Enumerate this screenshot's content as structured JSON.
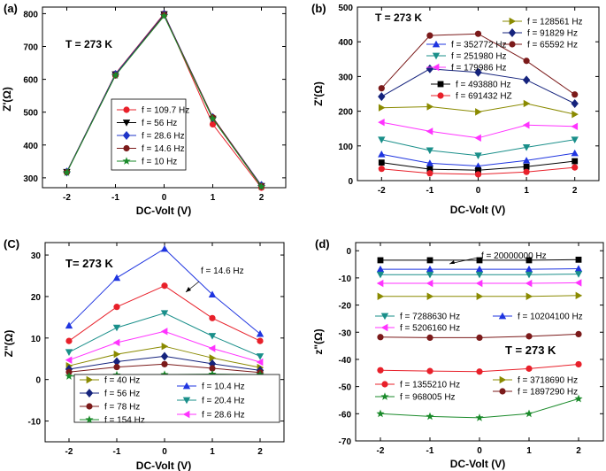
{
  "chart_data": [
    {
      "id": "a",
      "type": "line",
      "panel_label": "(a)",
      "annotation": "T = 273 K",
      "xlabel": "DC-Volt (V)",
      "ylabel": "Z'(Ω)",
      "x": [
        -2,
        -1,
        0,
        1,
        2
      ],
      "xticks": [
        "-2",
        "-1",
        "0",
        "1",
        "2"
      ],
      "xlim": [
        -2.5,
        2.5
      ],
      "ylim": [
        270,
        820
      ],
      "yticks": [
        300,
        400,
        500,
        600,
        700,
        800
      ],
      "legend": "center-right, boxed",
      "series": [
        {
          "name": "f = 109.7 Hz",
          "color": "#e8202a",
          "marker": "circle",
          "values": [
            318,
            617,
            800,
            463,
            270
          ]
        },
        {
          "name": "f = 56 Hz",
          "color": "#000000",
          "marker": "tri-down",
          "values": [
            318,
            615,
            798,
            480,
            275
          ]
        },
        {
          "name": "f = 28.6 Hz",
          "color": "#1f35c8",
          "marker": "diamond",
          "values": [
            318,
            615,
            798,
            484,
            277
          ]
        },
        {
          "name": "f = 14.6 Hz",
          "color": "#7b1a1a",
          "marker": "circle",
          "values": [
            317,
            612,
            796,
            484,
            275
          ]
        },
        {
          "name": "f = 10 Hz",
          "color": "#1a8a2a",
          "marker": "star",
          "values": [
            316,
            612,
            793,
            480,
            273
          ]
        }
      ]
    },
    {
      "id": "b",
      "type": "line",
      "panel_label": "(b)",
      "annotation": "T = 273 K",
      "xlabel": "DC-Volt (V)",
      "ylabel": "Z'(Ω)",
      "x": [
        -2,
        -1,
        0,
        1,
        2
      ],
      "xticks": [
        "-2",
        "-1",
        "0",
        "1",
        "2"
      ],
      "xlim": [
        -2.5,
        2.5
      ],
      "ylim": [
        0,
        500
      ],
      "yticks": [
        0,
        100,
        200,
        300,
        400,
        500
      ],
      "legend": "inside, top",
      "series": [
        {
          "name": "f = 128561 Hz",
          "color": "#8a8a00",
          "marker": "tri-right",
          "values": [
            210,
            213,
            198,
            222,
            191
          ]
        },
        {
          "name": "f = 91829 Hz",
          "color": "#15237d",
          "marker": "diamond",
          "values": [
            242,
            322,
            312,
            290,
            222
          ]
        },
        {
          "name": "f = 65592 Hz",
          "color": "#7b1a1a",
          "marker": "circle",
          "values": [
            266,
            418,
            423,
            345,
            248
          ]
        },
        {
          "name": "f = 352772 Hz",
          "color": "#1f35e0",
          "marker": "tri-up",
          "values": [
            76,
            50,
            42,
            58,
            79
          ]
        },
        {
          "name": "f = 251980 Hz",
          "color": "#1a8f8a",
          "marker": "tri-down",
          "values": [
            118,
            87,
            72,
            96,
            118
          ]
        },
        {
          "name": "f = 179986 Hz",
          "color": "#ff33ff",
          "marker": "tri-left",
          "values": [
            168,
            142,
            123,
            160,
            156
          ]
        },
        {
          "name": "f = 493880 Hz",
          "color": "#000000",
          "marker": "square",
          "values": [
            52,
            33,
            30,
            40,
            56
          ]
        },
        {
          "name": "f = 691432 HZ",
          "color": "#e8202a",
          "marker": "circle",
          "values": [
            34,
            21,
            18,
            25,
            38
          ]
        }
      ]
    },
    {
      "id": "c",
      "type": "line",
      "panel_label": "(C)",
      "annotation": "T= 273 K",
      "arrow_label": "f = 14.6 Hz",
      "xlabel": "DC-Volt (V)",
      "ylabel": "Z\"(Ω)",
      "x": [
        -2,
        -1,
        0,
        1,
        2
      ],
      "xticks": [
        "-2",
        "-1",
        "0",
        "1",
        "2"
      ],
      "xlim": [
        -2.5,
        2.5
      ],
      "ylim": [
        -15,
        33
      ],
      "yticks": [
        -10,
        0,
        10,
        20,
        30
      ],
      "legend": "bottom, boxed",
      "series": [
        {
          "name": "f = 10.4 Hz",
          "color": "#1f35e0",
          "marker": "tri-up",
          "values": [
            13,
            24.5,
            31.5,
            20.5,
            11
          ]
        },
        {
          "name": "f = 14.6 Hz",
          "color": "#e8202a",
          "marker": "circle",
          "values": [
            9.3,
            17.5,
            22.6,
            14.8,
            9.3
          ]
        },
        {
          "name": "f = 20.4 Hz",
          "color": "#1a8f8a",
          "marker": "tri-down",
          "values": [
            6.6,
            12.5,
            16,
            10.5,
            5.6
          ]
        },
        {
          "name": "f = 28.6 Hz",
          "color": "#ff33ff",
          "marker": "tri-left",
          "values": [
            4.7,
            8.9,
            11.6,
            7.5,
            4.2
          ]
        },
        {
          "name": "f = 40 Hz",
          "color": "#8a8a00",
          "marker": "tri-right",
          "values": [
            3.3,
            6.1,
            8,
            5.2,
            2.9
          ]
        },
        {
          "name": "f = 56 Hz",
          "color": "#15237d",
          "marker": "diamond",
          "values": [
            2.5,
            4.3,
            5.6,
            3.8,
            2.2
          ]
        },
        {
          "name": "f = 78 Hz",
          "color": "#7b1a1a",
          "marker": "circle",
          "values": [
            1.8,
            3,
            3.7,
            2.7,
            1.7
          ]
        },
        {
          "name": "f = 154 Hz",
          "color": "#1a8a2a",
          "marker": "star",
          "values": [
            0.8,
            1.1,
            1.2,
            1.3,
            1.2
          ]
        }
      ]
    },
    {
      "id": "d",
      "type": "line",
      "panel_label": "(d)",
      "annotation": "T = 273 K",
      "arrow_label": "f = 20000000 Hz",
      "xlabel": "DC-Volt (V)",
      "ylabel": "z\"(Ω)",
      "x": [
        -2,
        -1,
        0,
        1,
        2
      ],
      "xticks": [
        "-2",
        "-1",
        "0",
        "1",
        "2"
      ],
      "xlim": [
        -2.5,
        2.5
      ],
      "ylim": [
        -70,
        3
      ],
      "yticks": [
        -70,
        -60,
        -50,
        -40,
        -30,
        -20,
        -10,
        0
      ],
      "legend": "inside",
      "series": [
        {
          "name": "f = 20000000 Hz",
          "color": "#000000",
          "marker": "square",
          "values": [
            -3.5,
            -3.5,
            -3.5,
            -3.5,
            -3.3
          ],
          "show_in_legend": false
        },
        {
          "name": "f = 10204100 Hz",
          "color": "#1f35e0",
          "marker": "tri-up",
          "values": [
            -6.8,
            -6.8,
            -6.8,
            -6.8,
            -6.6
          ]
        },
        {
          "name": "f = 7288630 Hz",
          "color": "#1a8f8a",
          "marker": "tri-down",
          "values": [
            -8.8,
            -8.8,
            -8.8,
            -8.8,
            -8.6
          ]
        },
        {
          "name": "f = 5206160 Hz",
          "color": "#ff33ff",
          "marker": "tri-left",
          "values": [
            -12,
            -12,
            -12,
            -12,
            -11.8
          ]
        },
        {
          "name": "f = 3718690 Hz",
          "color": "#8a8a00",
          "marker": "tri-right",
          "values": [
            -16.8,
            -16.8,
            -16.8,
            -16.8,
            -16.5
          ]
        },
        {
          "name": "f = 1897290 Hz",
          "color": "#7b1a1a",
          "marker": "circle",
          "values": [
            -31.8,
            -32,
            -32,
            -31.5,
            -30.7
          ]
        },
        {
          "name": "f = 1355210 Hz",
          "color": "#e8202a",
          "marker": "circle",
          "values": [
            -44,
            -44.3,
            -44.5,
            -43.4,
            -41.8
          ]
        },
        {
          "name": "f = 968005 Hz",
          "color": "#1a8a2a",
          "marker": "star",
          "values": [
            -60,
            -61,
            -61.5,
            -60,
            -54.5
          ]
        }
      ]
    }
  ]
}
